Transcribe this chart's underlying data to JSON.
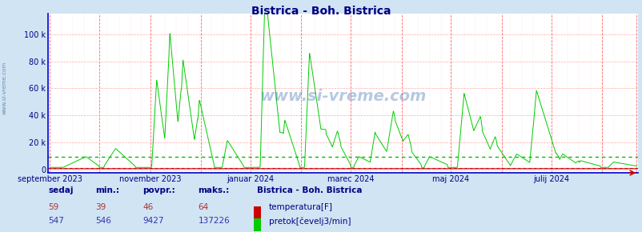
{
  "title": "Bistrica - Boh. Bistrica",
  "title_color": "#000080",
  "bg_color": "#d0e4f4",
  "plot_bg_color": "#ffffff",
  "watermark": "www.si-vreme.com",
  "xlabel_color": "#000080",
  "flow_color": "#00cc00",
  "temp_color": "#cc0000",
  "flow_avg_color": "#00bb00",
  "temp_avg_color": "#cc0000",
  "axis_color": "#0000cc",
  "tick_labels": [
    "0",
    "20 k",
    "40 k",
    "60 k",
    "80 k",
    "100 k"
  ],
  "y_ticks": [
    0,
    20000,
    40000,
    60000,
    80000,
    100000
  ],
  "x_tick_positions": [
    0,
    61,
    122,
    183,
    244,
    305,
    357
  ],
  "x_tick_labels": [
    "september 2023",
    "november 2023",
    "januar 2024",
    "marec 2024",
    "maj 2024",
    "julij 2024",
    ""
  ],
  "footer_col_labels": [
    "sedaj",
    "min.:",
    "povpr.:",
    "maks.:"
  ],
  "footer_temp": [
    59,
    39,
    46,
    64
  ],
  "footer_flow": [
    547,
    546,
    9427,
    137226
  ],
  "legend_title": "Bistrica - Boh. Bistrica",
  "legend_temp": "temperatura[F]",
  "legend_flow": "pretok[čevelj3/min]",
  "flow_avg": 9427,
  "ylim_max": 115000,
  "month_vlines": [
    0,
    30,
    61,
    92,
    122,
    153,
    183,
    214,
    244,
    275,
    305,
    336,
    357
  ]
}
